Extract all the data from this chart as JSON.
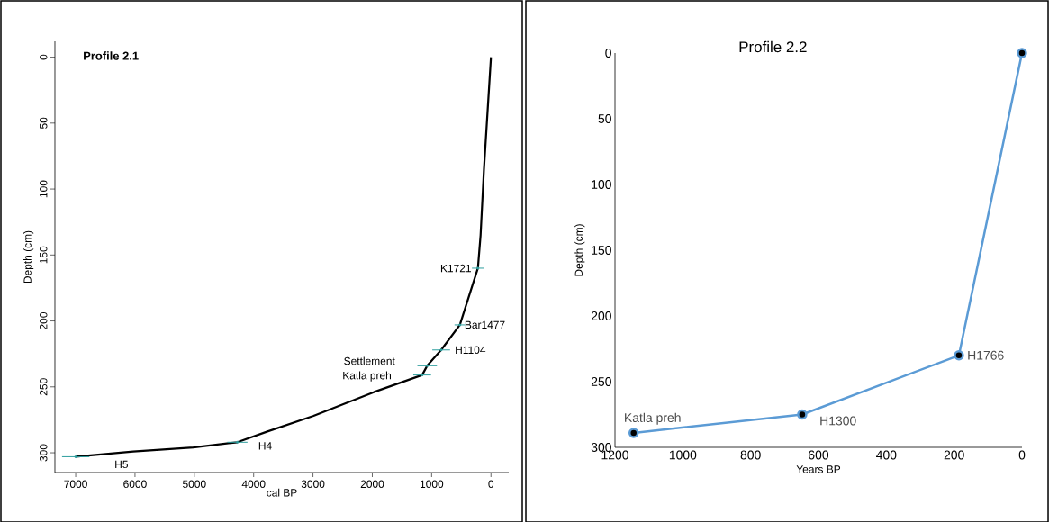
{
  "chart_data": [
    {
      "type": "line",
      "title": "Profile 2.1",
      "xlabel": "cal BP",
      "ylabel": "Depth (cm)",
      "xlim": [
        7350,
        -300
      ],
      "ylim": [
        315,
        -12
      ],
      "xticks": [
        7000,
        6000,
        5000,
        4000,
        3000,
        2000,
        1000,
        0
      ],
      "yticks": [
        0,
        50,
        100,
        150,
        200,
        250,
        300
      ],
      "marker": "none",
      "series": [
        {
          "color": "#000000",
          "x": [
            0,
            118,
            175,
            220,
            524,
            839,
            1075,
            1160,
            1976,
            2990,
            3778,
            4274,
            5017,
            6030,
            7000
          ],
          "values": [
            0,
            85,
            135,
            160,
            203,
            222,
            234,
            241,
            254,
            272,
            284,
            292,
            296,
            299,
            303
          ]
        },
        {
          "type": "scatter",
          "color": "#2e9e9e",
          "marker": "circle",
          "x": [
            220,
            524,
            839,
            1075,
            1160,
            4274,
            7000
          ],
          "values": [
            160,
            203,
            222,
            234,
            241,
            292,
            303
          ],
          "xerrors": [
            100,
            90,
            150,
            165,
            150,
            170,
            230
          ]
        }
      ],
      "annotations": [
        {
          "text": "K1721",
          "x": 220,
          "y": 160
        },
        {
          "text": "Bar1477",
          "x": 524,
          "y": 203
        },
        {
          "text": "H1104",
          "x": 839,
          "y": 222
        },
        "Settlement",
        "Katla preh",
        {
          "text": "H4",
          "x": 4274,
          "y": 292
        },
        "H5"
      ]
    },
    {
      "type": "line",
      "title": "Profile 2.2",
      "xlabel": "Years BP",
      "ylabel": "Depth (cm)",
      "xlim": [
        1200,
        0
      ],
      "ylim": [
        300,
        0
      ],
      "xticks": [
        1200,
        1000,
        800,
        600,
        400,
        200,
        0
      ],
      "yticks": [
        0,
        50,
        100,
        150,
        200,
        250,
        300
      ],
      "marker": "circle",
      "series": [
        {
          "color": "#5b9bd5",
          "x": [
            0,
            186,
            648,
            1145
          ],
          "values": [
            0,
            230,
            275,
            289
          ]
        }
      ],
      "annotations": [
        {
          "text": "H1766",
          "x": 186,
          "y": 230
        },
        {
          "text": "H1300",
          "x": 648,
          "y": 275
        },
        {
          "text": "Katla preh",
          "x": 1145,
          "y": 289
        }
      ]
    }
  ]
}
